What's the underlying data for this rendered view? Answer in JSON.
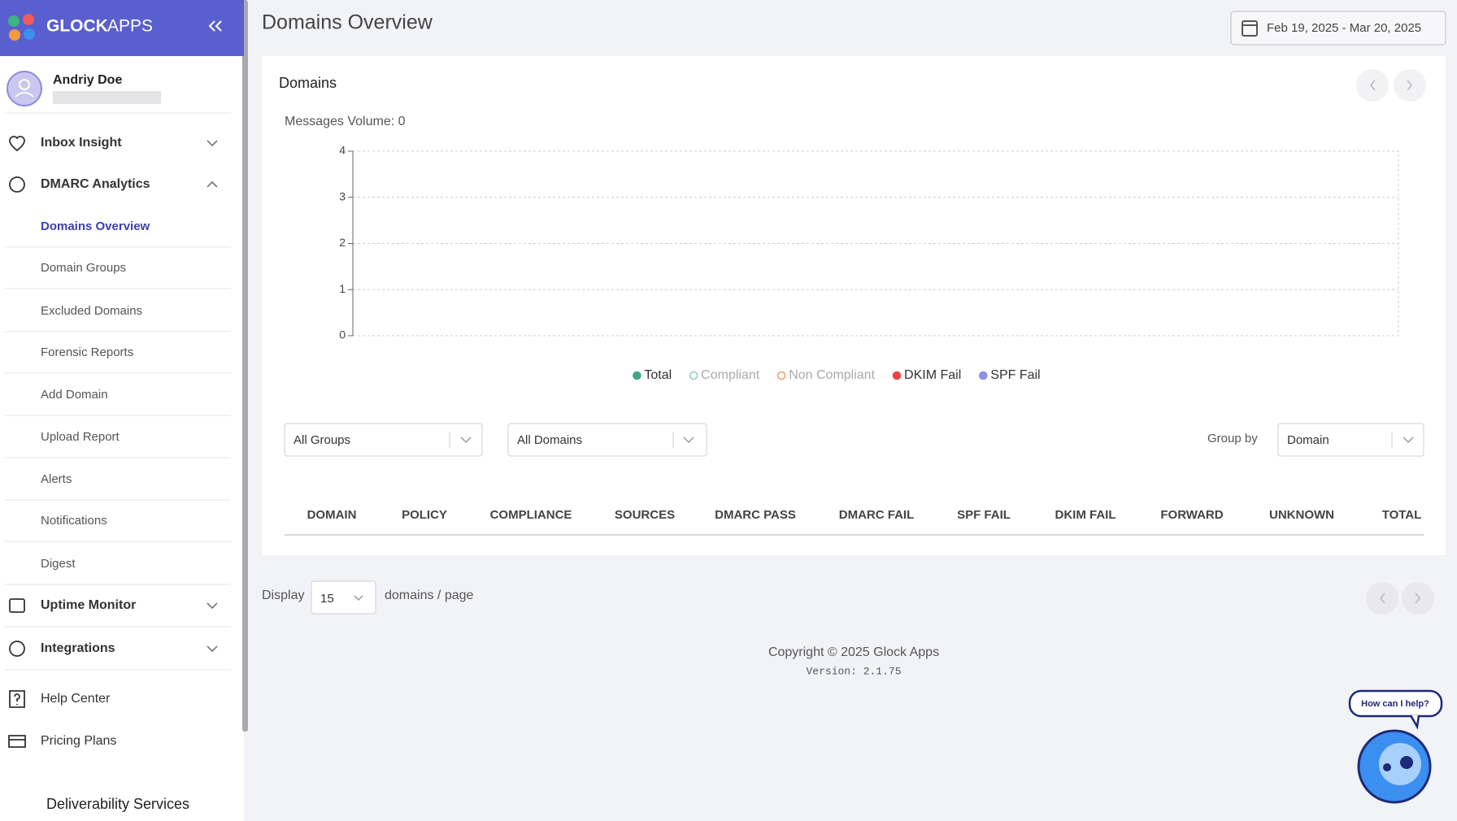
{
  "header": {
    "logo_bold": "GLOCK",
    "logo_light": "APPS"
  },
  "user": {
    "name": "Andriy Doe"
  },
  "nav": [
    {
      "label": "Inbox Insight",
      "expanded": false
    },
    {
      "label": "DMARC Analytics",
      "expanded": true,
      "children": [
        {
          "label": "Domains Overview",
          "active": true
        },
        {
          "label": "Domain Groups"
        },
        {
          "label": "Excluded Domains"
        },
        {
          "label": "Forensic Reports"
        },
        {
          "label": "Add Domain"
        },
        {
          "label": "Upload Report"
        },
        {
          "label": "Alerts"
        },
        {
          "label": "Notifications"
        },
        {
          "label": "Digest"
        }
      ]
    },
    {
      "label": "Uptime Monitor",
      "expanded": false
    },
    {
      "label": "Integrations",
      "expanded": false
    },
    {
      "label": "Help Center"
    },
    {
      "label": "Pricing Plans"
    }
  ],
  "sidebar_footer": "Deliverability Services",
  "page_title": "Domains Overview",
  "date_range": "Feb 19, 2025 - Mar 20, 2025",
  "panel": {
    "title": "Domains",
    "chart": {
      "type": "line",
      "title": "Messages Volume: 0",
      "ylim": [
        0,
        4
      ],
      "yticks": [
        0,
        1,
        2,
        3,
        4
      ],
      "grid": true,
      "series": [
        {
          "name": "Total",
          "color": "#3daa84",
          "filled": true
        },
        {
          "name": "Compliant",
          "color": "#8fd3b0",
          "filled": false
        },
        {
          "name": "Non Compliant",
          "color": "#f2a36b",
          "filled": false
        },
        {
          "name": "DKIM Fail",
          "color": "#ef4444",
          "filled": true
        },
        {
          "name": "SPF Fail",
          "color": "#8b8fe8",
          "filled": true
        }
      ]
    },
    "filters": {
      "group": "All Groups",
      "domain": "All Domains",
      "group_by_label": "Group by",
      "group_by": "Domain"
    },
    "table": {
      "columns": [
        "DOMAIN",
        "POLICY",
        "COMPLIANCE",
        "SOURCES",
        "DMARC PASS",
        "DMARC FAIL",
        "SPF FAIL",
        "DKIM FAIL",
        "FORWARD",
        "UNKNOWN",
        "TOTAL"
      ]
    }
  },
  "pagination": {
    "prefix": "Display",
    "page_size": 15,
    "suffix": "domains / page"
  },
  "footer": {
    "copyright": "Copyright © 2025 Glock Apps",
    "version": "Version: 2.1.75"
  },
  "chat": {
    "prompt": "How can I help?"
  }
}
